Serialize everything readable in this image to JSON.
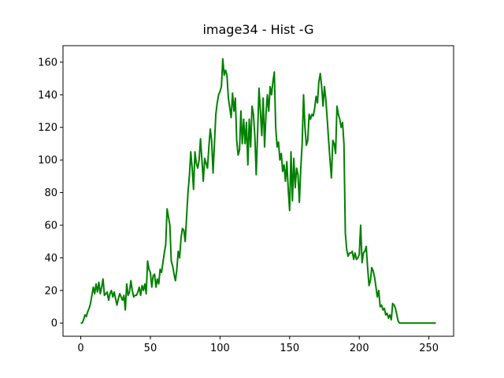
{
  "chart_data": {
    "type": "line",
    "title": "image34 - Hist -G",
    "color": "#008000",
    "x": [
      0,
      1,
      2,
      3,
      4,
      5,
      6,
      7,
      8,
      9,
      10,
      11,
      12,
      13,
      14,
      15,
      16,
      17,
      18,
      19,
      20,
      21,
      22,
      23,
      24,
      25,
      26,
      27,
      28,
      29,
      30,
      31,
      32,
      33,
      34,
      35,
      36,
      37,
      38,
      39,
      40,
      41,
      42,
      43,
      44,
      45,
      46,
      47,
      48,
      49,
      50,
      51,
      52,
      53,
      54,
      55,
      56,
      57,
      58,
      59,
      60,
      61,
      62,
      63,
      64,
      65,
      66,
      67,
      68,
      69,
      70,
      71,
      72,
      73,
      74,
      75,
      76,
      77,
      78,
      79,
      80,
      81,
      82,
      83,
      84,
      85,
      86,
      87,
      88,
      89,
      90,
      91,
      92,
      93,
      94,
      95,
      96,
      97,
      98,
      99,
      100,
      101,
      102,
      103,
      104,
      105,
      106,
      107,
      108,
      109,
      110,
      111,
      112,
      113,
      114,
      115,
      116,
      117,
      118,
      119,
      120,
      121,
      122,
      123,
      124,
      125,
      126,
      127,
      128,
      129,
      130,
      131,
      132,
      133,
      134,
      135,
      136,
      137,
      138,
      139,
      140,
      141,
      142,
      143,
      144,
      145,
      146,
      147,
      148,
      149,
      150,
      151,
      152,
      153,
      154,
      155,
      156,
      157,
      158,
      159,
      160,
      161,
      162,
      163,
      164,
      165,
      166,
      167,
      168,
      169,
      170,
      171,
      172,
      173,
      174,
      175,
      176,
      177,
      178,
      179,
      180,
      181,
      182,
      183,
      184,
      185,
      186,
      187,
      188,
      189,
      190,
      191,
      192,
      193,
      194,
      195,
      196,
      197,
      198,
      199,
      200,
      201,
      202,
      203,
      204,
      205,
      206,
      207,
      208,
      209,
      210,
      211,
      212,
      213,
      214,
      215,
      216,
      217,
      218,
      219,
      220,
      221,
      222,
      223,
      224,
      225,
      226,
      227,
      228,
      229,
      230,
      231,
      232,
      233,
      234,
      235,
      236,
      237,
      238,
      239,
      240,
      241,
      242,
      243,
      244,
      245,
      246,
      247,
      248,
      249,
      250,
      251,
      252,
      253,
      254,
      255
    ],
    "values": [
      0,
      0,
      2,
      5,
      4,
      7,
      9,
      12,
      17,
      22,
      18,
      24,
      19,
      25,
      18,
      22,
      27,
      17,
      18,
      19,
      14,
      18,
      20,
      16,
      19,
      15,
      11,
      15,
      18,
      16,
      14,
      17,
      8,
      24,
      17,
      19,
      26,
      20,
      16,
      17,
      17,
      19,
      22,
      17,
      23,
      20,
      24,
      18,
      38,
      33,
      31,
      22,
      29,
      30,
      22,
      27,
      24,
      33,
      31,
      37,
      43,
      48,
      70,
      65,
      60,
      38,
      35,
      30,
      26,
      33,
      44,
      40,
      52,
      58,
      57,
      50,
      65,
      80,
      90,
      105,
      95,
      82,
      105,
      98,
      95,
      100,
      113,
      100,
      87,
      101,
      98,
      95,
      108,
      119,
      112,
      92,
      110,
      128,
      135,
      140,
      142,
      145,
      162,
      152,
      155,
      152,
      138,
      132,
      126,
      141,
      130,
      138,
      112,
      103,
      106,
      130,
      110,
      125,
      110,
      123,
      97,
      125,
      108,
      133,
      128,
      115,
      91,
      117,
      144,
      130,
      115,
      138,
      108,
      128,
      140,
      130,
      145,
      140,
      148,
      154,
      120,
      108,
      111,
      100,
      104,
      93,
      97,
      87,
      99,
      82,
      69,
      105,
      75,
      101,
      83,
      95,
      91,
      74,
      95,
      110,
      140,
      120,
      109,
      112,
      128,
      125,
      128,
      127,
      132,
      139,
      135,
      148,
      153,
      145,
      133,
      145,
      137,
      125,
      112,
      100,
      89,
      112,
      110,
      104,
      133,
      128,
      125,
      120,
      123,
      110,
      55,
      45,
      41,
      43,
      43,
      44,
      39,
      43,
      39,
      40,
      42,
      60,
      37,
      43,
      44,
      47,
      34,
      23,
      26,
      34,
      32,
      28,
      22,
      16,
      20,
      10,
      11,
      8,
      9,
      5,
      6,
      3,
      5,
      2,
      12,
      11,
      9,
      5,
      1,
      0,
      0,
      0,
      0,
      0,
      0,
      0,
      0,
      0,
      0,
      0,
      0,
      0,
      0,
      0,
      0,
      0,
      0,
      0,
      0,
      0,
      0,
      0,
      0,
      0,
      0,
      0
    ],
    "xlim": [
      -12.75,
      267.75
    ],
    "xticks": [
      0,
      50,
      100,
      150,
      200,
      250
    ],
    "ylim": [
      -8.1,
      170.1
    ],
    "yticks": [
      0,
      20,
      40,
      60,
      80,
      100,
      120,
      140,
      160
    ]
  }
}
